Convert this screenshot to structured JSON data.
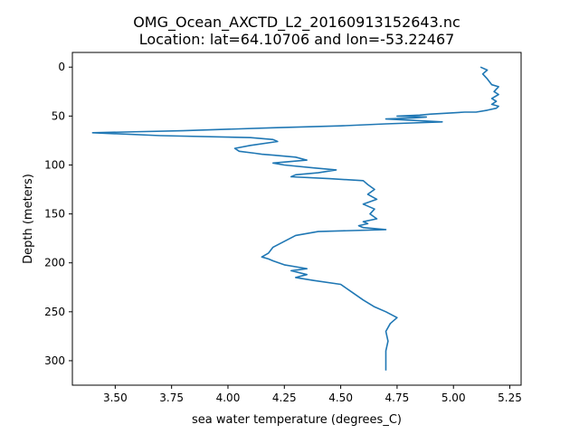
{
  "chart_data": {
    "type": "line",
    "title": "OMG_Ocean_AXCTD_L2_20160913152643.nc",
    "subtitle": "Location: lat=64.10706 and lon=-53.22467",
    "xlabel": "sea water temperature (degrees_C)",
    "ylabel": "Depth (meters)",
    "xlim": [
      3.31,
      5.3
    ],
    "ylim": [
      325,
      -15
    ],
    "y_inverted": true,
    "grid": false,
    "x_ticks": [
      3.5,
      3.75,
      4.0,
      4.25,
      4.5,
      4.75,
      5.0,
      5.25
    ],
    "x_tick_labels": [
      "3.50",
      "3.75",
      "4.00",
      "4.25",
      "4.50",
      "4.75",
      "5.00",
      "5.25"
    ],
    "y_ticks": [
      0,
      50,
      100,
      150,
      200,
      250,
      300
    ],
    "y_tick_labels": [
      "0",
      "50",
      "100",
      "150",
      "200",
      "250",
      "300"
    ],
    "series": [
      {
        "name": "sea water temperature",
        "color": "#1f77b4",
        "temperature": [
          5.12,
          5.15,
          5.13,
          5.15,
          5.17,
          5.2,
          5.18,
          5.2,
          5.17,
          5.19,
          5.17,
          5.2,
          5.19,
          5.15,
          5.1,
          5.05,
          4.98,
          4.9,
          4.85,
          4.75,
          4.88,
          4.82,
          4.7,
          4.95,
          4.7,
          4.5,
          4.2,
          3.8,
          3.4,
          3.7,
          4.1,
          4.2,
          4.22,
          4.1,
          4.03,
          4.05,
          4.12,
          4.15,
          4.2,
          4.3,
          4.35,
          4.2,
          4.25,
          4.38,
          4.48,
          4.4,
          4.3,
          4.28,
          4.45,
          4.6,
          4.62,
          4.65,
          4.62,
          4.66,
          4.6,
          4.65,
          4.63,
          4.66,
          4.6,
          4.62,
          4.58,
          4.6,
          4.7,
          4.4,
          4.3,
          4.25,
          4.2,
          4.18,
          4.15,
          4.18,
          4.2,
          4.25,
          4.3,
          4.35,
          4.28,
          4.35,
          4.3,
          4.38,
          4.5,
          4.55,
          4.6,
          4.65,
          4.7,
          4.75,
          4.72,
          4.7,
          4.71,
          4.7,
          4.7
        ],
        "depth": [
          0,
          3,
          7,
          12,
          18,
          20,
          25,
          28,
          32,
          35,
          38,
          40,
          42,
          44,
          46,
          46,
          47,
          48,
          49,
          50,
          51,
          52,
          53,
          56,
          58,
          60,
          62,
          65,
          67,
          70,
          72,
          74,
          76,
          80,
          83,
          86,
          88,
          89,
          90,
          92,
          95,
          98,
          100,
          103,
          105,
          108,
          110,
          112,
          114,
          116,
          120,
          125,
          130,
          135,
          140,
          145,
          150,
          155,
          158,
          160,
          162,
          164,
          166,
          168,
          172,
          178,
          184,
          190,
          194,
          196,
          198,
          202,
          204,
          206,
          208,
          212,
          215,
          218,
          222,
          230,
          238,
          245,
          250,
          256,
          262,
          270,
          280,
          290,
          310
        ]
      }
    ]
  }
}
